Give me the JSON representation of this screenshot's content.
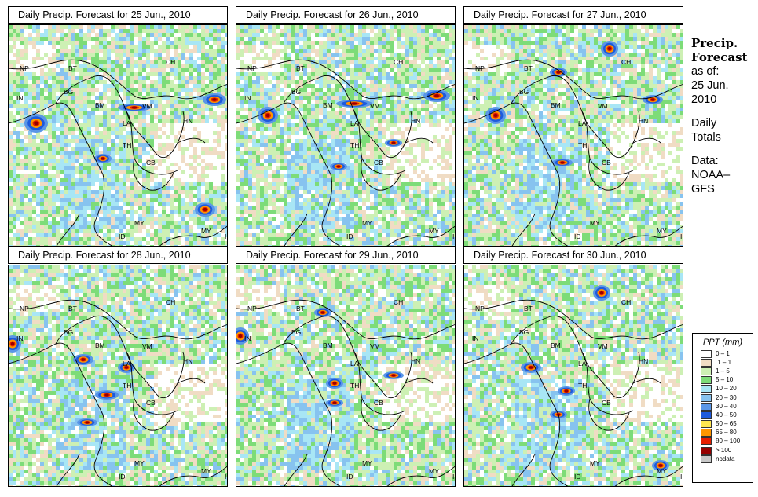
{
  "panels": [
    {
      "title": "Daily Precip. Forecast for  25 Jun., 2010"
    },
    {
      "title": "Daily Precip. Forecast for  26 Jun., 2010"
    },
    {
      "title": "Daily Precip. Forecast for  27 Jun., 2010"
    },
    {
      "title": "Daily Precip. Forecast for  28 Jun., 2010"
    },
    {
      "title": "Daily Precip. Forecast for  29 Jun., 2010"
    },
    {
      "title": "Daily Precip. Forecast for  30 Jun., 2010"
    }
  ],
  "map_labels": [
    "NP",
    "BT",
    "BG",
    "IN",
    "BM",
    "CH",
    "VM",
    "LA",
    "HN",
    "TH",
    "CB",
    "MY",
    "MY",
    "ID",
    "ID"
  ],
  "sidebar": {
    "heading1": "Precip.",
    "heading2": "Forecast",
    "line1": "as of:",
    "line2": "25 Jun.",
    "line3": "2010",
    "line4": "Daily",
    "line5": "Totals",
    "line6": "Data:",
    "line7": "NOAA–",
    "line8": "GFS"
  },
  "legend": {
    "title": "PPT (mm)",
    "items": [
      {
        "label": "0 – 1",
        "color": "#ffffff"
      },
      {
        "label": ".1 – 1",
        "color": "#f0dcc4"
      },
      {
        "label": "1 – 5",
        "color": "#cdf0b4"
      },
      {
        "label": "5 – 10",
        "color": "#7ddc78"
      },
      {
        "label": "10 – 20",
        "color": "#a8e6f5"
      },
      {
        "label": "20 – 30",
        "color": "#87c3ef"
      },
      {
        "label": "30 – 40",
        "color": "#5a96e6"
      },
      {
        "label": "40 – 50",
        "color": "#1e5adc"
      },
      {
        "label": "50 – 65",
        "color": "#ffe650"
      },
      {
        "label": "65 – 80",
        "color": "#ff9600"
      },
      {
        "label": "80 – 100",
        "color": "#e61e00"
      },
      {
        "label": "> 100",
        "color": "#960000"
      },
      {
        "label": "nodata",
        "color": "#c8c8c8"
      }
    ]
  }
}
